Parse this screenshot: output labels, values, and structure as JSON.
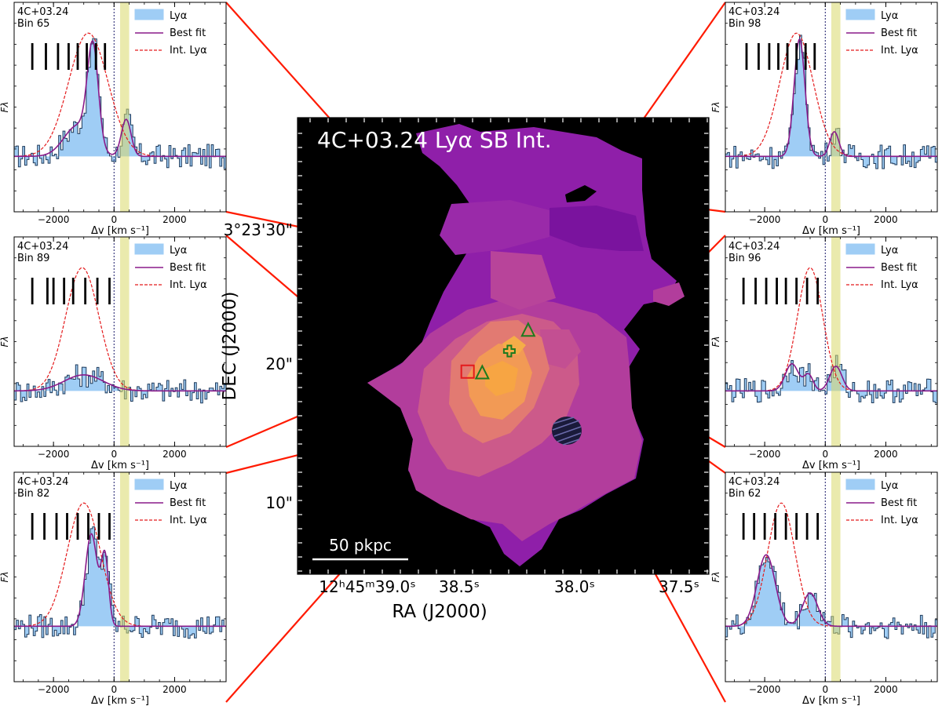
{
  "central_map": {
    "title": "4C+03.24 Lyα SB Int.",
    "xlabel": "RA (J2000)",
    "ylabel": "DEC (J2000)",
    "ra_ticks": [
      "12h45m39.0s",
      "38.5s",
      "38.0s",
      "37.5s"
    ],
    "dec_ticks": [
      "3°23'30\"",
      "20\"",
      "10\""
    ],
    "scalebar_label": "50 pkpc",
    "markers": [
      {
        "type": "square",
        "label": "",
        "ra_s": 38.52,
        "dec_as": 19.5
      },
      {
        "type": "triangle",
        "label": "",
        "ra_s": 38.45,
        "dec_as": 19.4
      },
      {
        "type": "cross",
        "label": "",
        "ra_s": 38.32,
        "dec_as": 21.0
      },
      {
        "type": "triangle",
        "label": "",
        "ra_s": 38.23,
        "dec_as": 22.5
      }
    ],
    "colors": {
      "background": "#000000",
      "low": "#8f1fa9",
      "mid": "#c84f8e",
      "high": "#f7a543",
      "marker_green": "#1e7a1e",
      "marker_red": "#e41a1c"
    }
  },
  "chart_data": [
    {
      "type": "line",
      "source": "4C+03.24",
      "bin": "Bin 65",
      "xlabel": "Δv [km s⁻¹]",
      "ylabel": "F_λ",
      "xlim": [
        -3300,
        3700
      ],
      "xticks": [
        -2000,
        0,
        2000
      ],
      "legend": [
        "Lyα",
        "Best fit",
        "Int. Lyα"
      ],
      "legend_position": "top-right",
      "series": [
        {
          "name": "Lyα",
          "components": [
            {
              "mu": -1200,
              "sigma": 450,
              "amp": 0.25
            },
            {
              "mu": -700,
              "sigma": 180,
              "amp": 0.8
            },
            {
              "mu": 400,
              "sigma": 160,
              "amp": 0.3
            }
          ]
        },
        {
          "name": "Best fit",
          "components": [
            {
              "mu": -1200,
              "sigma": 450,
              "amp": 0.25
            },
            {
              "mu": -700,
              "sigma": 180,
              "amp": 0.8
            },
            {
              "mu": 400,
              "sigma": 160,
              "amp": 0.3
            }
          ]
        },
        {
          "name": "Int. Lyα",
          "components": [
            {
              "mu": -850,
              "sigma": 650,
              "amp": 1.0
            }
          ]
        }
      ],
      "tick_marks": [
        -2700,
        -2250,
        -1850,
        -1500,
        -1200,
        -900,
        -600,
        -300
      ],
      "absorber_band": [
        200,
        500
      ]
    },
    {
      "type": "line",
      "source": "4C+03.24",
      "bin": "Bin 89",
      "xlabel": "Δv [km s⁻¹]",
      "ylabel": "F_λ",
      "xlim": [
        -3300,
        3700
      ],
      "xticks": [
        -2000,
        0,
        2000
      ],
      "legend": [
        "Lyα",
        "Best fit",
        "Int. Lyα"
      ],
      "legend_position": "top-right",
      "series": [
        {
          "name": "Lyα",
          "components": [
            {
              "mu": -1000,
              "sigma": 650,
              "amp": 0.13
            }
          ]
        },
        {
          "name": "Best fit",
          "components": [
            {
              "mu": -1000,
              "sigma": 650,
              "amp": 0.13
            }
          ]
        },
        {
          "name": "Int. Lyα",
          "components": [
            {
              "mu": -1050,
              "sigma": 550,
              "amp": 1.0
            }
          ]
        }
      ],
      "tick_marks": [
        -2700,
        -2200,
        -2000,
        -1650,
        -1350,
        -950,
        -550,
        -150
      ],
      "absorber_band": [
        200,
        500
      ]
    },
    {
      "type": "line",
      "source": "4C+03.24",
      "bin": "Bin 82",
      "xlabel": "Δv [km s⁻¹]",
      "ylabel": "F_λ",
      "xlim": [
        -3300,
        3700
      ],
      "xticks": [
        -2000,
        0,
        2000
      ],
      "legend": [
        "Lyα",
        "Best fit",
        "Int. Lyα"
      ],
      "legend_position": "top-right",
      "series": [
        {
          "name": "Lyα",
          "components": [
            {
              "mu": -750,
              "sigma": 200,
              "amp": 0.75
            },
            {
              "mu": -300,
              "sigma": 120,
              "amp": 0.55
            }
          ]
        },
        {
          "name": "Best fit",
          "components": [
            {
              "mu": -750,
              "sigma": 200,
              "amp": 0.75
            },
            {
              "mu": -300,
              "sigma": 120,
              "amp": 0.55
            }
          ]
        },
        {
          "name": "Int. Lyα",
          "components": [
            {
              "mu": -1000,
              "sigma": 550,
              "amp": 1.0
            }
          ]
        }
      ],
      "tick_marks": [
        -2700,
        -2300,
        -1900,
        -1550,
        -1200,
        -850,
        -500,
        -150
      ],
      "absorber_band": [
        200,
        500
      ]
    },
    {
      "type": "line",
      "source": "4C+03.24",
      "bin": "Bin 98",
      "xlabel": "Δv [km s⁻¹]",
      "ylabel": "F_λ",
      "xlim": [
        -3300,
        3700
      ],
      "xticks": [
        -2000,
        0,
        2000
      ],
      "legend": [
        "Lyα",
        "Best fit",
        "Int. Lyα"
      ],
      "legend_position": "top-right",
      "series": [
        {
          "name": "Lyα",
          "components": [
            {
              "mu": -850,
              "sigma": 180,
              "amp": 0.95
            },
            {
              "mu": 300,
              "sigma": 150,
              "amp": 0.2
            }
          ]
        },
        {
          "name": "Best fit",
          "components": [
            {
              "mu": -850,
              "sigma": 180,
              "amp": 0.95
            },
            {
              "mu": 300,
              "sigma": 150,
              "amp": 0.2
            }
          ]
        },
        {
          "name": "Int. Lyα",
          "components": [
            {
              "mu": -950,
              "sigma": 550,
              "amp": 1.0
            }
          ]
        }
      ],
      "tick_marks": [
        -2600,
        -2200,
        -1850,
        -1550,
        -1250,
        -950,
        -650,
        -350
      ],
      "absorber_band": [
        200,
        500
      ]
    },
    {
      "type": "line",
      "source": "4C+03.24",
      "bin": "Bin 96",
      "xlabel": "Δv [km s⁻¹]",
      "ylabel": "F_λ",
      "xlim": [
        -3300,
        3700
      ],
      "xticks": [
        -2000,
        0,
        2000
      ],
      "legend": [
        "Lyα",
        "Best fit",
        "Int. Lyα"
      ],
      "legend_position": "top-right",
      "series": [
        {
          "name": "Lyα",
          "components": [
            {
              "mu": -1100,
              "sigma": 220,
              "amp": 0.22
            },
            {
              "mu": -550,
              "sigma": 150,
              "amp": 0.13
            },
            {
              "mu": 350,
              "sigma": 200,
              "amp": 0.2
            }
          ]
        },
        {
          "name": "Best fit",
          "components": [
            {
              "mu": -1100,
              "sigma": 220,
              "amp": 0.22
            },
            {
              "mu": -550,
              "sigma": 150,
              "amp": 0.13
            },
            {
              "mu": 350,
              "sigma": 200,
              "amp": 0.2
            }
          ]
        },
        {
          "name": "Int. Lyα",
          "components": [
            {
              "mu": -500,
              "sigma": 420,
              "amp": 1.0
            }
          ]
        }
      ],
      "tick_marks": [
        -2700,
        -2300,
        -1950,
        -1600,
        -1300,
        -950,
        -600,
        -250
      ],
      "absorber_band": [
        200,
        500
      ]
    },
    {
      "type": "line",
      "source": "4C+03.24",
      "bin": "Bin 62",
      "xlabel": "Δv [km s⁻¹]",
      "ylabel": "F_λ",
      "xlim": [
        -3300,
        3700
      ],
      "xticks": [
        -2000,
        0,
        2000
      ],
      "legend": [
        "Lyα",
        "Best fit",
        "Int. Lyα"
      ],
      "legend_position": "top-right",
      "series": [
        {
          "name": "Lyα",
          "components": [
            {
              "mu": -1950,
              "sigma": 300,
              "amp": 0.58
            },
            {
              "mu": -500,
              "sigma": 250,
              "amp": 0.27
            }
          ]
        },
        {
          "name": "Best fit",
          "components": [
            {
              "mu": -1950,
              "sigma": 300,
              "amp": 0.58
            },
            {
              "mu": -500,
              "sigma": 250,
              "amp": 0.27
            }
          ]
        },
        {
          "name": "Int. Lyα",
          "components": [
            {
              "mu": -1450,
              "sigma": 450,
              "amp": 1.0
            }
          ]
        }
      ],
      "tick_marks": [
        -2700,
        -2350,
        -2000,
        -1650,
        -1300,
        -950,
        -600,
        -250
      ],
      "absorber_band": [
        200,
        500
      ]
    }
  ]
}
